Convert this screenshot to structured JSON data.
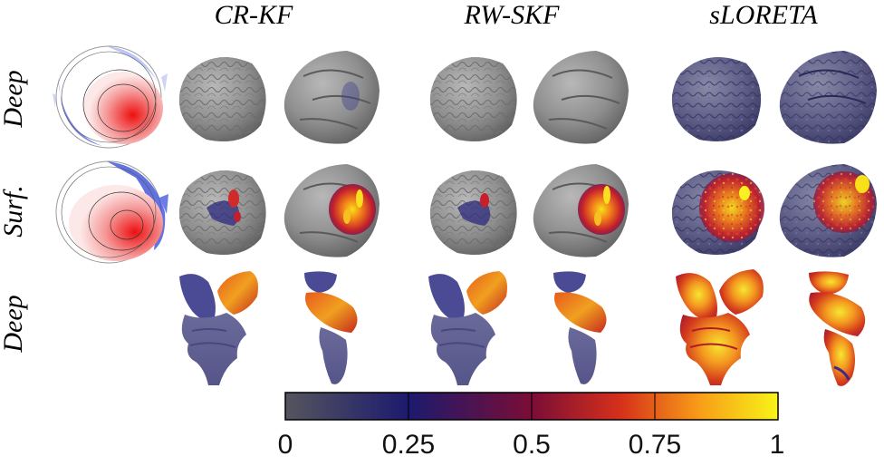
{
  "columns": {
    "c1": "CR-KF",
    "c2": "RW-SKF",
    "c3": "sLORETA"
  },
  "rows": {
    "r1": "Deep",
    "r2": "Surf.",
    "r3": "Deep"
  },
  "colorbar": {
    "ticks": [
      "0",
      "0.25",
      "0.5",
      "0.75",
      "1"
    ],
    "tick_values": [
      0,
      0.25,
      0.5,
      0.75,
      1
    ],
    "stops": [
      "#55555e",
      "#1c1a6e",
      "#7a0d36",
      "#d6301b",
      "#f89c18",
      "#f8f418"
    ]
  }
}
